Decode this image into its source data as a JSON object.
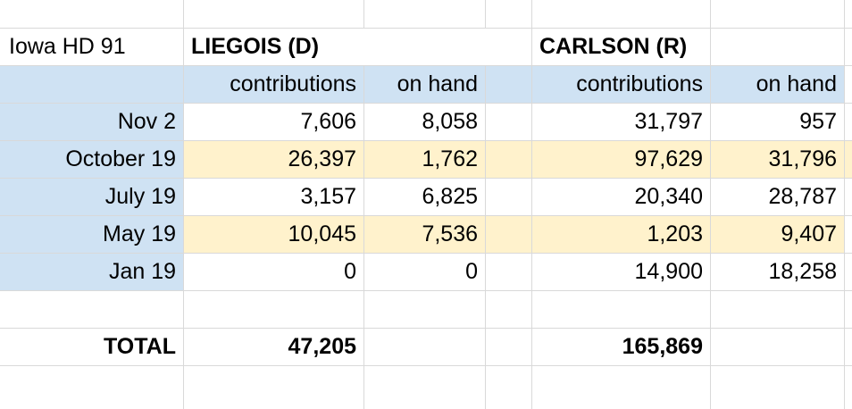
{
  "sheet": {
    "title": "Iowa HD 91",
    "candidate1": "LIEGOIS (D)",
    "candidate2": "CARLSON (R)",
    "headers": {
      "c1_contrib": "contributions",
      "c1_onhand": "on hand",
      "c2_contrib": "contributions",
      "c2_onhand": "on hand"
    },
    "rows": [
      {
        "label": "Nov 2",
        "c1_contrib": "7,606",
        "c1_onhand": "8,058",
        "c2_contrib": "31,797",
        "c2_onhand": "957"
      },
      {
        "label": "October 19",
        "c1_contrib": "26,397",
        "c1_onhand": "1,762",
        "c2_contrib": "97,629",
        "c2_onhand": "31,796"
      },
      {
        "label": "July 19",
        "c1_contrib": "3,157",
        "c1_onhand": "6,825",
        "c2_contrib": "20,340",
        "c2_onhand": "28,787"
      },
      {
        "label": "May 19",
        "c1_contrib": "10,045",
        "c1_onhand": "7,536",
        "c2_contrib": "1,203",
        "c2_onhand": "9,407"
      },
      {
        "label": "Jan 19",
        "c1_contrib": "0",
        "c1_onhand": "0",
        "c2_contrib": "14,900",
        "c2_onhand": "18,258"
      }
    ],
    "total": {
      "label": "TOTAL",
      "c1": "47,205",
      "c2": "165,869"
    }
  },
  "colors": {
    "header_fill": "#cfe2f3",
    "highlight_fill": "#fff2cc",
    "gridline": "#d9d9d9"
  }
}
